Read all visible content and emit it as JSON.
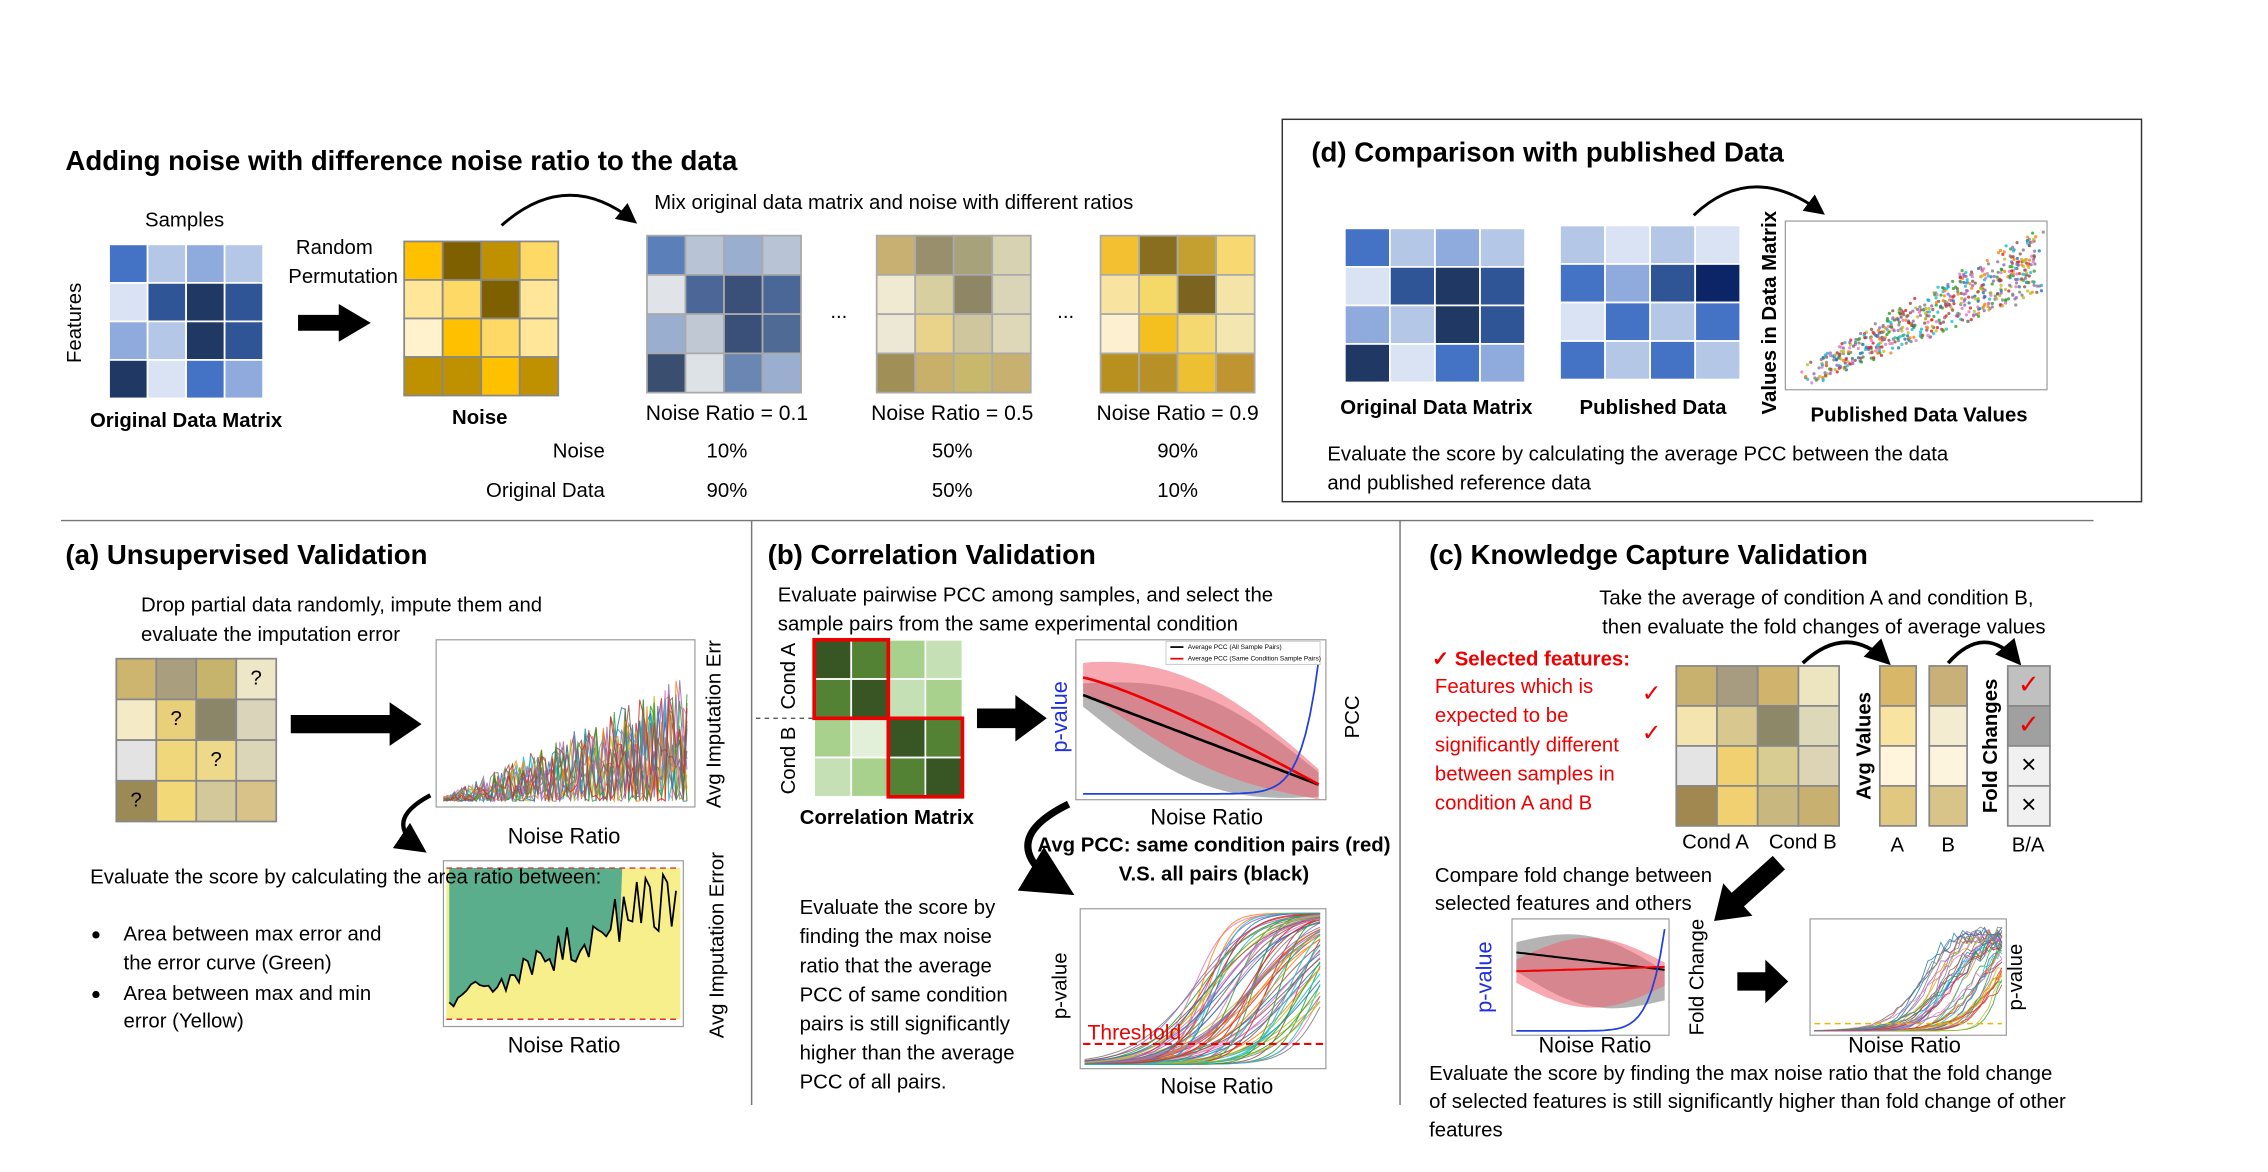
{
  "top": {
    "title": "Adding noise with difference noise ratio to the data",
    "samples": "Samples",
    "features": "Features",
    "original_matrix": "Original Data Matrix",
    "permutation": [
      "Random",
      "Permutation"
    ],
    "noise": "Noise",
    "mix": "Mix original data matrix and noise with different ratios",
    "ellipses": [
      "...",
      "..."
    ],
    "ratio_labels": [
      "Noise Ratio = 0.1",
      "Noise Ratio = 0.5",
      "Noise Ratio = 0.9"
    ],
    "table": {
      "row_labels": [
        "Noise",
        "Original Data"
      ],
      "rows": [
        [
          "10%",
          "50%",
          "90%"
        ],
        [
          "90%",
          "50%",
          "10%"
        ]
      ]
    }
  },
  "panel_d": {
    "title": "(d) Comparison with published Data",
    "original_matrix": "Original Data Matrix",
    "published": "Published Data",
    "y_label": "Values in Data Matrix",
    "x_label": "Published Data Values",
    "description": [
      "Evaluate the score by calculating the average PCC between the data",
      "and published reference data"
    ]
  },
  "panel_a": {
    "title": "(a) Unsupervised Validation",
    "description": [
      "Drop partial data randomly, impute them and",
      "evaluate the imputation error"
    ],
    "question_marks": [
      "?",
      "?",
      "?",
      "?"
    ],
    "plot1": {
      "y_label": "Avg Imputation Err",
      "x_label": "Noise Ratio"
    },
    "plot2": {
      "y_label": "Avg Imputation Error",
      "x_label": "Noise Ratio"
    },
    "score_text": "Evaluate the score by calculating the area ratio between:",
    "bullets": [
      [
        "Area between max error and",
        "the error curve (Green)"
      ],
      [
        "Area between max and min",
        "error (Yellow)"
      ]
    ]
  },
  "panel_b": {
    "title": "(b) Correlation Validation",
    "description": [
      "Evaluate pairwise PCC among samples, and select the",
      "sample pairs from the same experimental condition"
    ],
    "cond_a": "Cond A",
    "cond_b": "Cond B",
    "matrix_label": "Correlation Matrix",
    "plot1": {
      "y_label": "p-value",
      "y2_label": "PCC",
      "x_label": "Noise Ratio",
      "legend": [
        "Average PCC (All Sample Pairs)",
        "Average PCC (Same Condition Sample Pairs)"
      ]
    },
    "caption": [
      "Avg PCC: same condition pairs (red)",
      "V.S. all pairs (black)"
    ],
    "score_text": [
      "Evaluate the score by",
      "finding the max noise",
      "ratio that the average",
      "PCC of same condition",
      "pairs is still significantly",
      "higher than the average",
      "PCC of all pairs."
    ],
    "plot2": {
      "y_label": "p-value",
      "threshold": "Threshold",
      "x_label": "Noise Ratio"
    }
  },
  "panel_c": {
    "title": "(c) Knowledge Capture Validation",
    "description": [
      "Take the average of condition A and condition B,",
      "then evaluate the fold changes of average values"
    ],
    "selected_title": "✓ Selected features:",
    "selected_text": [
      "Features which is",
      "expected to be",
      "significantly different",
      "between samples in",
      "condition A and B"
    ],
    "side_checks": [
      "✓",
      "✓"
    ],
    "cond_labels": [
      "Cond A",
      "Cond B"
    ],
    "avg_label": "Avg Values",
    "avg_columns": [
      "A",
      "B"
    ],
    "fold_label": "Fold Changes",
    "fold_column": "B/A",
    "fold_marks": [
      "✓",
      "✓",
      "×",
      "×"
    ],
    "compare": [
      "Compare fold change between",
      "selected features and others"
    ],
    "plot1": {
      "y_label": "p-value",
      "y2_label": "Fold Change",
      "x_label": "Noise Ratio"
    },
    "plot2": {
      "y_label": "p-value",
      "x_label": "Noise Ratio"
    },
    "score_text": [
      "Evaluate the score by finding the max noise ratio that the fold change",
      "of selected features is still significantly higher than fold change of other",
      "features"
    ]
  }
}
